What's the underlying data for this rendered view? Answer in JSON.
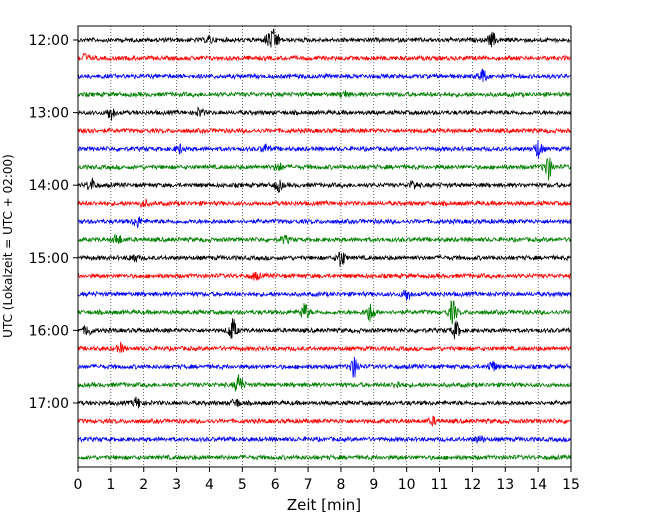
{
  "chart_data": {
    "type": "line",
    "title": "",
    "xlabel": "Zeit  [min]",
    "ylabel": "UTC (Lokalzeit = UTC + 02:00)",
    "xlim": [
      0,
      15
    ],
    "x_ticks": [
      "0",
      "1",
      "2",
      "3",
      "4",
      "5",
      "6",
      "7",
      "8",
      "9",
      "10",
      "11",
      "12",
      "13",
      "14",
      "15"
    ],
    "y_tick_labels": [
      "12:00",
      "13:00",
      "14:00",
      "15:00",
      "16:00",
      "17:00"
    ],
    "grid": "vertical dotted at each minute",
    "trace_colors": [
      "#000000",
      "#ff0000",
      "#0000ff",
      "#008000"
    ],
    "trace_interval_minutes": 15,
    "traces": [
      {
        "start": "12:00",
        "color": "#000000",
        "events": [
          [
            4.0,
            0.5
          ],
          [
            5.8,
            1.0
          ],
          [
            6.0,
            1.4
          ],
          [
            12.6,
            1.0
          ]
        ]
      },
      {
        "start": "12:15",
        "color": "#ff0000",
        "events": [
          [
            0.2,
            0.6
          ]
        ]
      },
      {
        "start": "12:30",
        "color": "#0000ff",
        "events": [
          [
            12.3,
            1.0
          ]
        ]
      },
      {
        "start": "12:45",
        "color": "#008000",
        "events": [
          [
            8.1,
            0.5
          ]
        ]
      },
      {
        "start": "13:00",
        "color": "#000000",
        "events": [
          [
            1.0,
            1.0
          ],
          [
            3.7,
            0.6
          ]
        ]
      },
      {
        "start": "13:15",
        "color": "#ff0000",
        "events": [
          [
            0.3,
            0.5
          ]
        ]
      },
      {
        "start": "13:30",
        "color": "#0000ff",
        "events": [
          [
            3.1,
            0.6
          ],
          [
            5.7,
            0.6
          ],
          [
            14.0,
            1.3
          ]
        ]
      },
      {
        "start": "13:45",
        "color": "#008000",
        "events": [
          [
            6.1,
            0.6
          ],
          [
            14.3,
            1.8
          ]
        ]
      },
      {
        "start": "14:00",
        "color": "#000000",
        "events": [
          [
            0.4,
            1.0
          ],
          [
            6.1,
            0.8
          ],
          [
            10.2,
            0.6
          ]
        ]
      },
      {
        "start": "14:15",
        "color": "#ff0000",
        "events": [
          [
            2.0,
            0.5
          ]
        ]
      },
      {
        "start": "14:30",
        "color": "#0000ff",
        "events": [
          [
            1.8,
            0.8
          ]
        ]
      },
      {
        "start": "14:45",
        "color": "#008000",
        "events": [
          [
            1.2,
            0.8
          ],
          [
            6.3,
            0.5
          ]
        ]
      },
      {
        "start": "15:00",
        "color": "#000000",
        "events": [
          [
            1.7,
            0.6
          ],
          [
            8.0,
            1.3
          ]
        ]
      },
      {
        "start": "15:15",
        "color": "#ff0000",
        "events": [
          [
            5.4,
            0.5
          ]
        ]
      },
      {
        "start": "15:30",
        "color": "#0000ff",
        "events": [
          [
            10.0,
            0.9
          ]
        ]
      },
      {
        "start": "15:45",
        "color": "#008000",
        "events": [
          [
            6.9,
            1.3
          ],
          [
            8.9,
            1.4
          ],
          [
            11.4,
            1.7
          ]
        ]
      },
      {
        "start": "16:00",
        "color": "#000000",
        "events": [
          [
            0.3,
            0.8
          ],
          [
            4.7,
            1.7
          ],
          [
            11.5,
            1.2
          ]
        ]
      },
      {
        "start": "16:15",
        "color": "#ff0000",
        "events": [
          [
            1.3,
            0.6
          ]
        ]
      },
      {
        "start": "16:30",
        "color": "#0000ff",
        "events": [
          [
            8.4,
            1.5
          ],
          [
            12.6,
            0.8
          ]
        ]
      },
      {
        "start": "16:45",
        "color": "#008000",
        "events": [
          [
            4.9,
            1.6
          ],
          [
            9.7,
            0.5
          ]
        ]
      },
      {
        "start": "17:00",
        "color": "#000000",
        "events": [
          [
            1.8,
            0.8
          ],
          [
            4.8,
            0.6
          ]
        ]
      },
      {
        "start": "17:15",
        "color": "#ff0000",
        "events": [
          [
            10.8,
            0.5
          ]
        ]
      },
      {
        "start": "17:30",
        "color": "#0000ff",
        "events": [
          [
            12.2,
            0.5
          ]
        ]
      },
      {
        "start": "17:45",
        "color": "#008000",
        "events": []
      }
    ]
  }
}
